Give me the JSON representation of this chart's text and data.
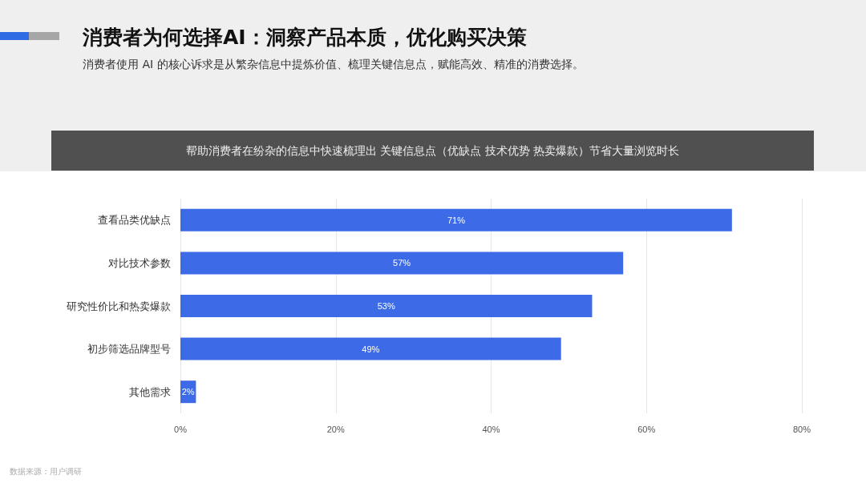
{
  "chart_data": {
    "type": "bar",
    "orientation": "horizontal",
    "title": "消费者为何选择AI：洞察产品本质，优化购买决策",
    "subtitle": "消费者使用 AI 的核心诉求是从繁杂信息中提炼价值、梳理关键信息点，赋能高效、精准的消费选择。",
    "annotations": [
      "帮助消费者在纷杂的信息中快速梳理出 关键信息点（优缺点 技术优势 热卖爆款）节省大量浏览时长",
      "数据来源：用户调研"
    ],
    "categories": [
      "查看品类优缺点",
      "对比技术参数",
      "研究性价比和热卖爆款",
      "初步筛选品牌型号",
      "其他需求"
    ],
    "values": [
      71,
      57,
      53,
      49,
      2
    ],
    "value_labels": [
      "71%",
      "57%",
      "53%",
      "49%",
      "2%"
    ],
    "color": "#3d6ae6",
    "xlim": [
      0,
      80
    ],
    "xticks": [
      {
        "value": 0,
        "label": "0%"
      },
      {
        "value": 20,
        "label": "20%"
      },
      {
        "value": 40,
        "label": "40%"
      },
      {
        "value": 60,
        "label": "60%"
      },
      {
        "value": 80,
        "label": "80%"
      }
    ],
    "grid": "x"
  }
}
